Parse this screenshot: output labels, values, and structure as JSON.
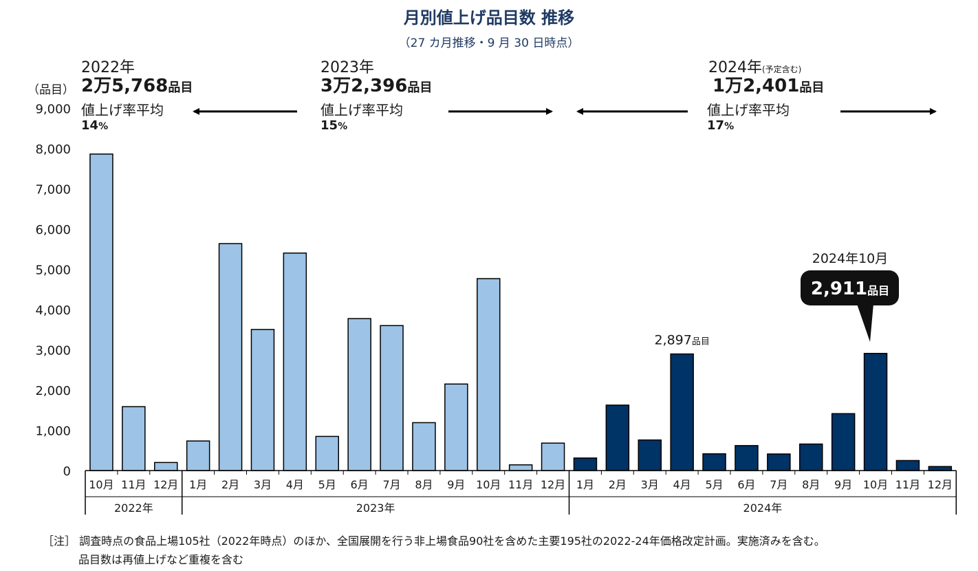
{
  "title": "月別値上げ品目数 推移",
  "subtitle": "（27 カ月推移・9 月 30 日時点）",
  "colors": {
    "light_bar": "#9dc3e6",
    "dark_bar": "#003366",
    "title": "#1f3a63"
  },
  "summary": {
    "y2022": {
      "year": "2022年",
      "year_note": "",
      "total": "2万5,768",
      "total_unit": "品目",
      "rate_label": "値上げ率平均",
      "rate_value": "14",
      "rate_unit": "%"
    },
    "y2023": {
      "year": "2023年",
      "year_note": "",
      "total": "3万2,396",
      "total_unit": "品目",
      "rate_label": "値上げ率平均",
      "rate_value": "15",
      "rate_unit": "%"
    },
    "y2024": {
      "year": "2024年",
      "year_note": "(予定含む)",
      "total": "1万2,401",
      "total_unit": "品目",
      "rate_label": "値上げ率平均",
      "rate_value": "17",
      "rate_unit": "%"
    }
  },
  "callouts": {
    "apr2024": {
      "value": "2,897",
      "unit": "品目"
    },
    "oct2024": {
      "label": "2024年10月",
      "value": "2,911",
      "unit": "品目"
    }
  },
  "footnote": {
    "line1": "［注］ 調査時点の食品上場105社（2022年時点）のほか、全国展開を行う非上場食品90社を含めた主要195社の2022-24年価格改定計画。実施済みを含む。",
    "line2": "品目数は再値上げなど重複を含む"
  },
  "chart_data": {
    "type": "bar",
    "title": "月別値上げ品目数 推移",
    "ylabel": "（品目）",
    "ylim": [
      0,
      9000
    ],
    "yticks": [
      "0",
      "1,000",
      "2,000",
      "3,000",
      "4,000",
      "5,000",
      "6,000",
      "7,000",
      "8,000",
      "9,000"
    ],
    "grid": false,
    "categories": [
      "10月",
      "11月",
      "12月",
      "1月",
      "2月",
      "3月",
      "4月",
      "5月",
      "6月",
      "7月",
      "8月",
      "9月",
      "10月",
      "11月",
      "12月",
      "1月",
      "2月",
      "3月",
      "4月",
      "5月",
      "6月",
      "7月",
      "8月",
      "9月",
      "10月",
      "11月",
      "12月"
    ],
    "values": [
      7864,
      1588,
      200,
      735,
      5639,
      3506,
      5404,
      848,
      3776,
      3602,
      1190,
      2150,
      4769,
      142,
      682,
      312,
      1626,
      760,
      2897,
      417,
      621,
      412,
      659,
      1414,
      2911,
      249,
      100
    ],
    "year_groups": [
      {
        "label": "2022年",
        "count": 3
      },
      {
        "label": "2023年",
        "count": 12
      },
      {
        "label": "2024年",
        "count": 12
      }
    ]
  }
}
